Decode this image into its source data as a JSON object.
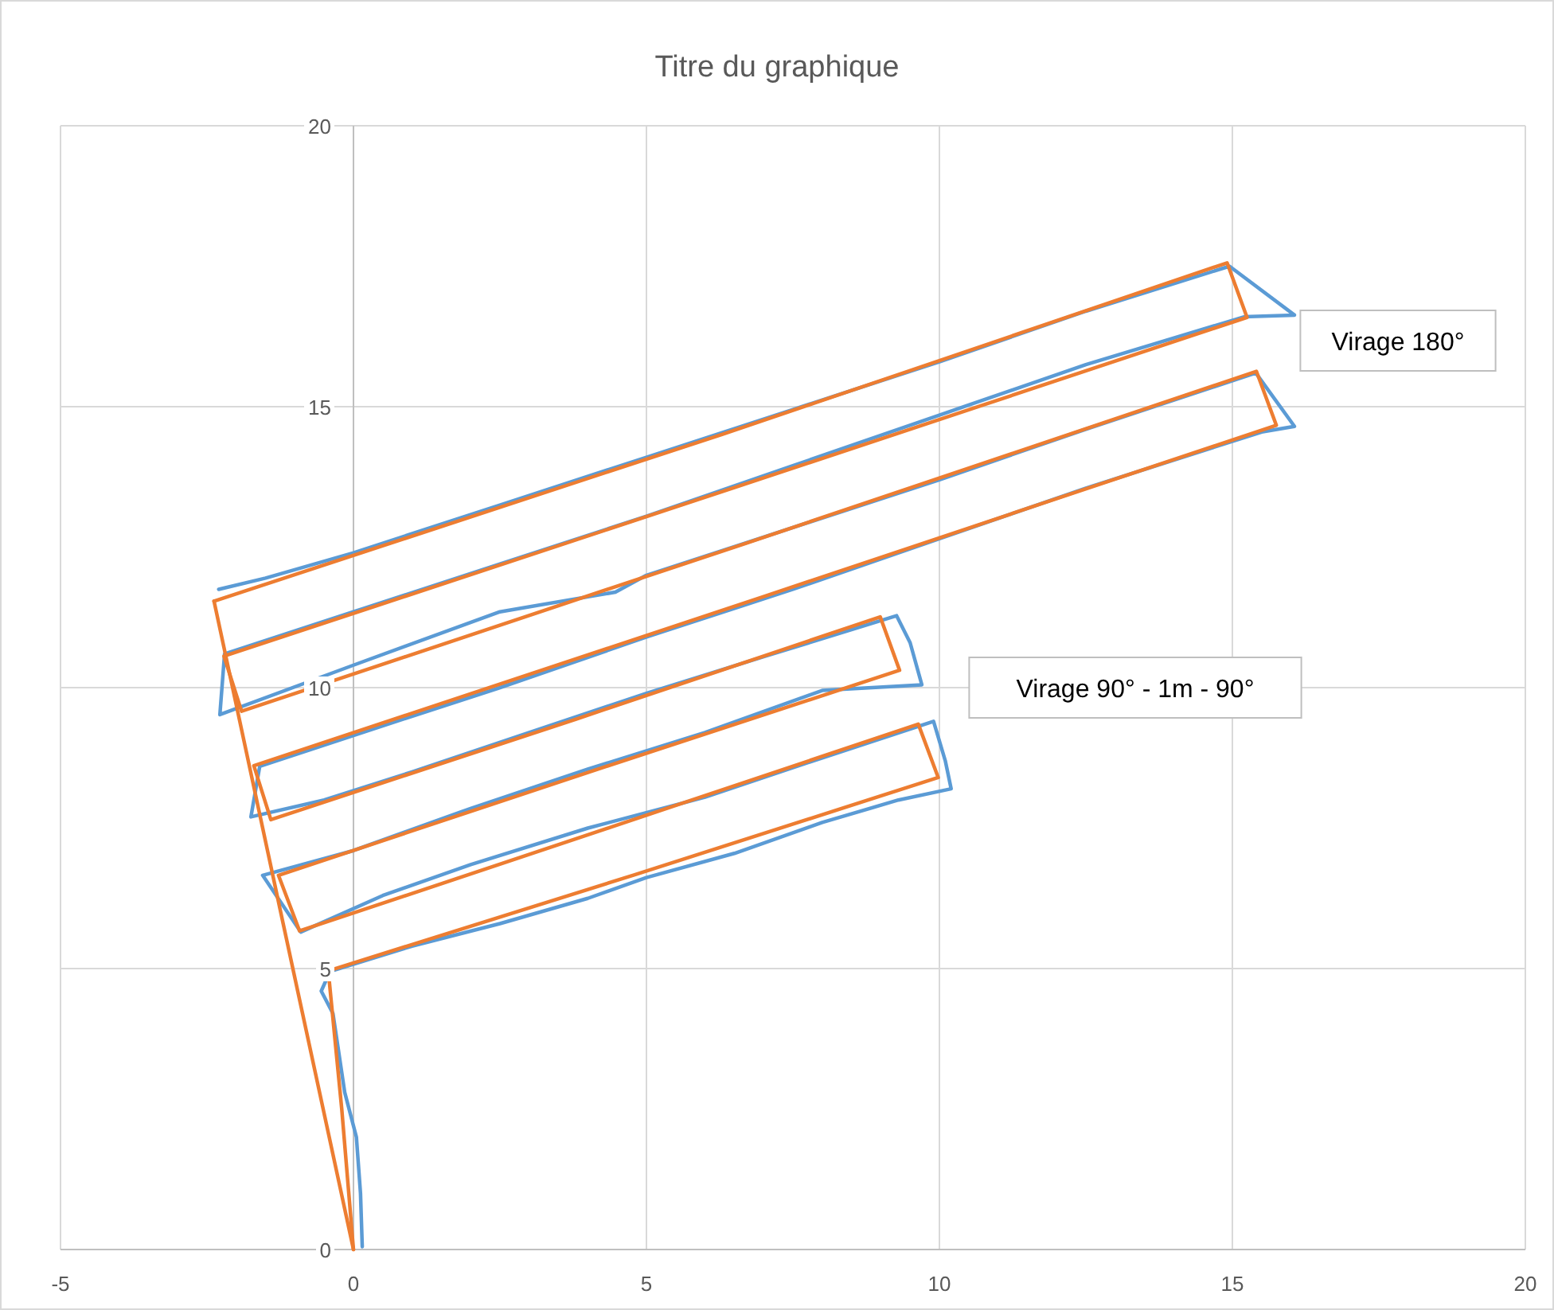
{
  "chart_data": {
    "type": "line",
    "title": "Titre du graphique",
    "xlim": [
      -5,
      20
    ],
    "ylim": [
      0,
      20
    ],
    "xticks": [
      -5,
      0,
      5,
      10,
      15,
      20
    ],
    "yticks": [
      0,
      5,
      10,
      15,
      20
    ],
    "grid": true,
    "marker": "none",
    "line_style": "solid",
    "annotations": [
      "Virage 180°",
      "Virage 90° - 1m - 90°"
    ],
    "series": [
      {
        "color": "#5b9bd5",
        "x": [
          0.15,
          0.12,
          0.05,
          -0.15,
          -0.25,
          -0.35,
          -0.55,
          -0.4,
          1,
          2.5,
          4,
          5,
          6.5,
          8,
          9.3,
          10.2,
          10.1,
          9.9,
          8,
          6,
          4,
          2,
          0.5,
          -0.9,
          -1.55,
          0,
          2,
          4,
          6,
          8,
          9.7,
          9.5,
          9.27,
          7,
          5,
          3,
          1,
          -0.5,
          -1.75,
          -1.6,
          0,
          2.5,
          5,
          7.5,
          10,
          12.5,
          15.5,
          16.06,
          15.4,
          12.5,
          10,
          7,
          5,
          4.47,
          2.5,
          0,
          -2.28,
          -2.2,
          0,
          2.5,
          5,
          7.5,
          10,
          12.5,
          15.2,
          16.06,
          14.95,
          12.5,
          10,
          7.5,
          5,
          2.5,
          0,
          -1.5,
          -2.3
        ],
        "values": [
          0.05,
          1,
          2,
          2.8,
          3.5,
          4.2,
          4.6,
          4.95,
          5.4,
          5.8,
          6.25,
          6.62,
          7.05,
          7.6,
          8.0,
          8.2,
          8.7,
          9.4,
          8.75,
          8.05,
          7.5,
          6.85,
          6.3,
          5.65,
          6.66,
          7.1,
          7.85,
          8.55,
          9.2,
          9.95,
          10.05,
          10.8,
          11.28,
          10.55,
          9.9,
          9.2,
          8.5,
          8.0,
          7.7,
          8.6,
          9.15,
          10.0,
          10.9,
          11.75,
          12.65,
          13.55,
          14.55,
          14.65,
          15.6,
          14.6,
          13.7,
          12.68,
          12.0,
          11.7,
          11.35,
          10.4,
          9.52,
          10.6,
          11.35,
          12.2,
          13.05,
          13.95,
          14.85,
          15.75,
          16.6,
          16.63,
          17.5,
          16.7,
          15.8,
          14.95,
          14.1,
          13.25,
          12.4,
          11.95,
          11.75
        ]
      },
      {
        "color": "#ed7d31",
        "x": [
          0,
          -0.2,
          -0.43,
          4.8,
          9.98,
          9.64,
          4.4,
          -0.92,
          -1.28,
          4,
          9.32,
          8.99,
          3.8,
          -1.41,
          -1.7,
          7,
          15.75,
          15.41,
          6.7,
          -1.91,
          -2.21,
          6.5,
          15.25,
          14.91,
          6.3,
          -2.38
        ],
        "values": [
          0,
          2.5,
          4.96,
          6.67,
          8.4,
          9.35,
          7.52,
          5.67,
          6.66,
          8.49,
          10.31,
          11.26,
          9.44,
          7.65,
          8.61,
          11.62,
          14.67,
          15.63,
          12.57,
          9.58,
          10.56,
          13.56,
          16.59,
          17.56,
          14.51,
          11.54
        ]
      },
      {
        "color": "#ed7d31",
        "x": [
          -2.38,
          -1.2,
          0
        ],
        "values": [
          11.54,
          5.8,
          0
        ]
      }
    ]
  }
}
